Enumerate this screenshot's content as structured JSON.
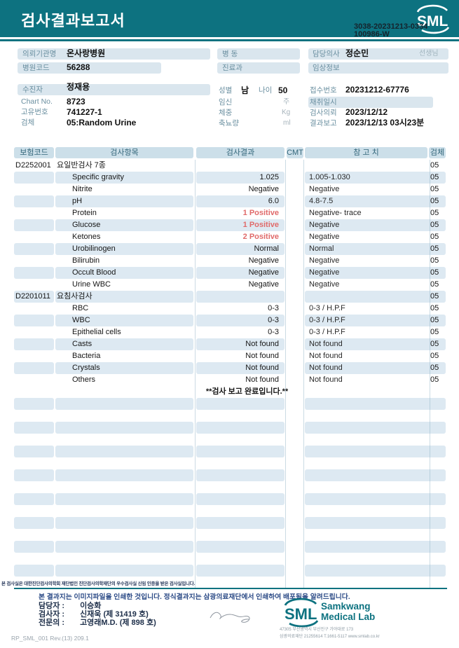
{
  "header": {
    "title": "검사결과보고서",
    "report_no_line1": "3038-20231213-0334",
    "report_no_line2": "100986-W",
    "logo_text": "SML"
  },
  "patient": {
    "requesting_org_label": "의뢰기관명",
    "requesting_org": "온사랑병원",
    "hospital_code_label": "병원코드",
    "hospital_code": "56288",
    "patient_label": "수진자",
    "patient_name": "정재용",
    "chart_no_label": "Chart No.",
    "chart_no": "8723",
    "unique_no_label": "고유번호",
    "unique_no": "741227-1",
    "specimen_label": "검체",
    "specimen": "05:Random Urine",
    "ward_label": "병 동",
    "dept_label": "진료과",
    "sex_label": "성별",
    "sex": "남",
    "age_label": "나이",
    "age": "50",
    "pregnancy_label": "임신",
    "pregnancy_unit": "주",
    "weight_label": "체중",
    "weight_unit": "Kg",
    "urine_volume_label": "축뇨량",
    "urine_volume_unit": "ml",
    "doctor_label": "담당의사",
    "doctor": "정순민",
    "doctor_suffix": "선생님",
    "clinical_info_label": "임상정보",
    "receipt_no_label": "접수번호",
    "receipt_no": "20231212-67776",
    "collect_label": "채취일시",
    "request_label": "검사의뢰",
    "request_date": "2023/12/12",
    "report_label": "결과보고",
    "report_date": "2023/12/13 03시23분"
  },
  "table": {
    "headers": {
      "code": "보험코드",
      "item": "검사항목",
      "result": "검사결과",
      "cmt": "CMT",
      "ref": "참 고 치",
      "spec": "검체"
    },
    "rows": [
      {
        "code": "D2252001",
        "item": "요일반검사 7종",
        "group": true,
        "result": "",
        "ref": "",
        "spec": "05"
      },
      {
        "item": "Specific gravity",
        "result": "1.025",
        "ref": "1.005-1.030",
        "spec": "05"
      },
      {
        "item": "Nitrite",
        "result": "Negative",
        "ref": "Negative",
        "spec": "05"
      },
      {
        "item": "pH",
        "result": "6.0",
        "ref": "4.8-7.5",
        "spec": "05"
      },
      {
        "item": "Protein",
        "result": "1 Positive",
        "abnormal": true,
        "ref": "Negative- trace",
        "spec": "05"
      },
      {
        "item": "Glucose",
        "result": "1 Positive",
        "abnormal": true,
        "ref": "Negative",
        "spec": "05"
      },
      {
        "item": "Ketones",
        "result": "2 Positive",
        "abnormal": true,
        "ref": "Negative",
        "spec": "05"
      },
      {
        "item": "Urobilinogen",
        "result": "Normal",
        "ref": "Normal",
        "spec": "05"
      },
      {
        "item": "Bilirubin",
        "result": "Negative",
        "ref": "Negative",
        "spec": "05"
      },
      {
        "item": "Occult Blood",
        "result": "Negative",
        "ref": "Negative",
        "spec": "05"
      },
      {
        "item": "Urine WBC",
        "result": "Negative",
        "ref": "Negative",
        "spec": "05"
      },
      {
        "code": "D2201011",
        "item": "요침사검사",
        "group": true,
        "result": "",
        "ref": "",
        "spec": "05"
      },
      {
        "item": "RBC",
        "result": "0-3",
        "ref": "0-3 / H.P.F",
        "spec": "05"
      },
      {
        "item": "WBC",
        "result": "0-3",
        "ref": "0-3 / H.P.F",
        "spec": "05"
      },
      {
        "item": "Epithelial cells",
        "result": "0-3",
        "ref": "0-3 / H.P.F",
        "spec": "05"
      },
      {
        "item": "Casts",
        "result": "Not found",
        "ref": "Not found",
        "spec": "05"
      },
      {
        "item": "Bacteria",
        "result": "Not found",
        "ref": "Not found",
        "spec": "05"
      },
      {
        "item": "Crystals",
        "result": "Not found",
        "ref": "Not found",
        "spec": "05"
      },
      {
        "item": "Others",
        "result": "Not found",
        "ref": "Not found",
        "spec": "05"
      }
    ],
    "completion_message": "**검사  보고  완료입니다.**",
    "empty_row_count": 16
  },
  "footer": {
    "certification_note": "본 검사실은 대한진단검사의학회 재단법인 진단검사의학재단의 우수검사실 신임 인증을 받은 검사실입니다.",
    "notice": "본 결과지는 이미지파일을 인쇄한 것입니다. 정식결과지는 삼광의료재단에서 인쇄하여 배포됨을 알려드립니다.",
    "staff": [
      {
        "label": "담당자 :",
        "name": "이승화"
      },
      {
        "label": "검사자 :",
        "name": "신재욱 (제 31419 호)"
      },
      {
        "label": "전문의 :",
        "name": "고영래M.D. (제 898 호)"
      }
    ],
    "logo_text": "SML",
    "brand_line1": "Samkwang",
    "brand_line2": "Medical Lab",
    "address_line1": "47305 부산광역시 부산진구 가야대로 173",
    "address_line2": "삼광의료재단 21255614 T.1661-5117 www.smlab.co.kr",
    "doc_code": "RP_SML_001 Rev.(13) 209.1"
  },
  "colors": {
    "teal": "#0d7280",
    "pill_bg": "#dae6ee",
    "table_header_bg": "#ccdfe9",
    "stripe_bg": "#dde9f2",
    "abnormal_red": "#e06a6a",
    "notice_blue": "#2b4a86"
  }
}
